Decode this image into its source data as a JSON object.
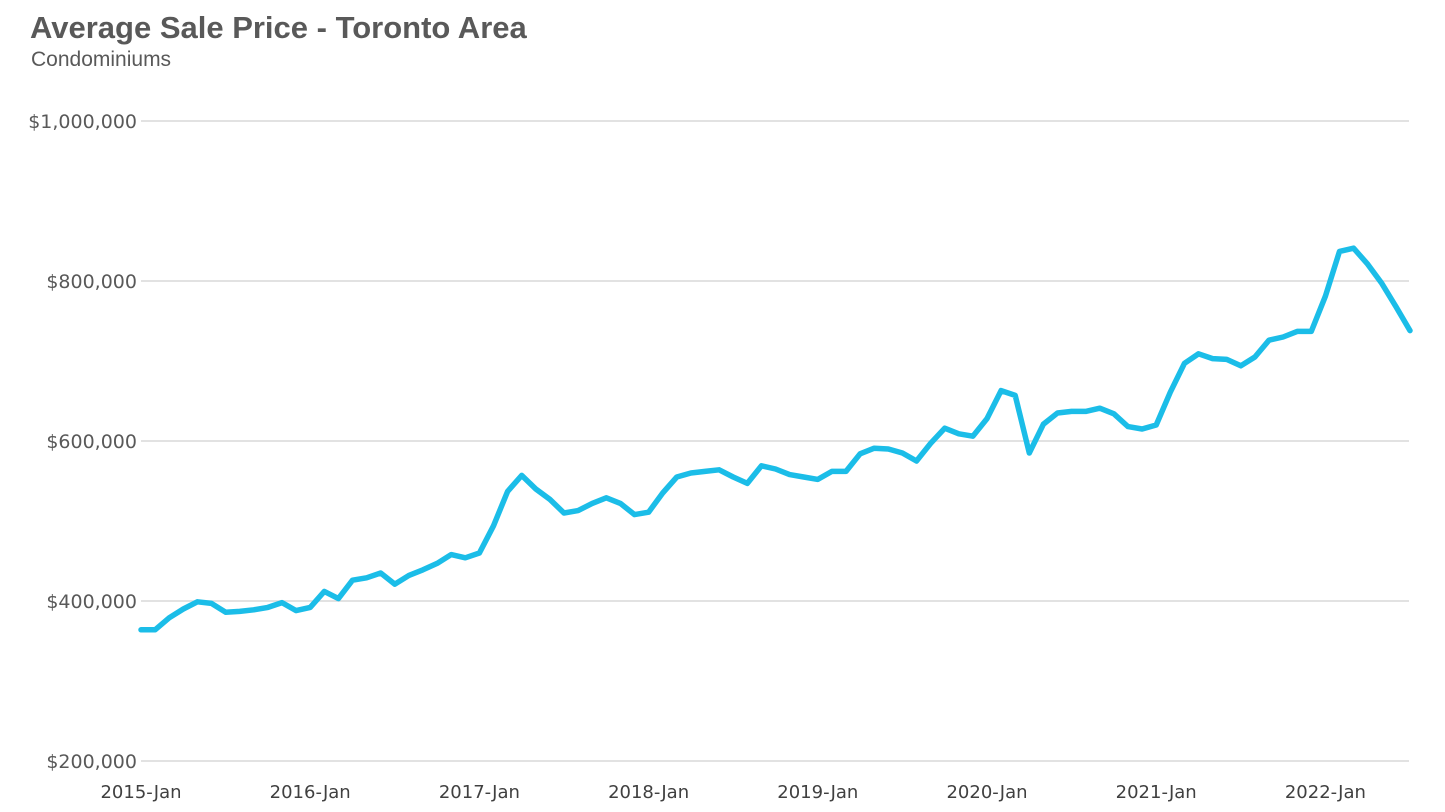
{
  "chart_data": {
    "type": "line",
    "title": "Average Sale Price - Toronto Area",
    "subtitle": "Condominiums",
    "xlabel": "",
    "ylabel": "",
    "ylim": [
      200000,
      1000000
    ],
    "y_ticks": [
      200000,
      400000,
      600000,
      800000,
      1000000
    ],
    "y_tick_labels": [
      "$200,000",
      "$400,000",
      "$600,000",
      "$800,000",
      "$1,000,000"
    ],
    "x_start": "2015-Jan",
    "x_ticks": [
      "2015-Jan",
      "2016-Jan",
      "2017-Jan",
      "2018-Jan",
      "2019-Jan",
      "2020-Jan",
      "2021-Jan",
      "2022-Jan"
    ],
    "grid": true,
    "legend": "none",
    "series": [
      {
        "name": "Condominiums",
        "color": "#1bbde8",
        "values": [
          364000,
          364000,
          379000,
          390000,
          399000,
          397000,
          386000,
          387000,
          389000,
          392000,
          398000,
          388000,
          392000,
          412000,
          403000,
          426000,
          429000,
          435000,
          421000,
          432000,
          439000,
          447000,
          458000,
          454000,
          460000,
          494000,
          537000,
          557000,
          540000,
          527000,
          510000,
          513000,
          522000,
          529000,
          522000,
          508000,
          511000,
          535000,
          555000,
          560000,
          562000,
          564000,
          555000,
          547000,
          569000,
          565000,
          558000,
          555000,
          552000,
          562000,
          562000,
          584000,
          591000,
          590000,
          585000,
          575000,
          597000,
          616000,
          609000,
          606000,
          628000,
          663000,
          657000,
          585000,
          621000,
          635000,
          637000,
          637000,
          641000,
          634000,
          618000,
          615000,
          620000,
          661000,
          697000,
          709000,
          703000,
          702000,
          694000,
          705000,
          726000,
          730000,
          737000,
          737000,
          781000,
          837000,
          841000,
          821000,
          797000,
          768000,
          738000
        ]
      }
    ]
  }
}
